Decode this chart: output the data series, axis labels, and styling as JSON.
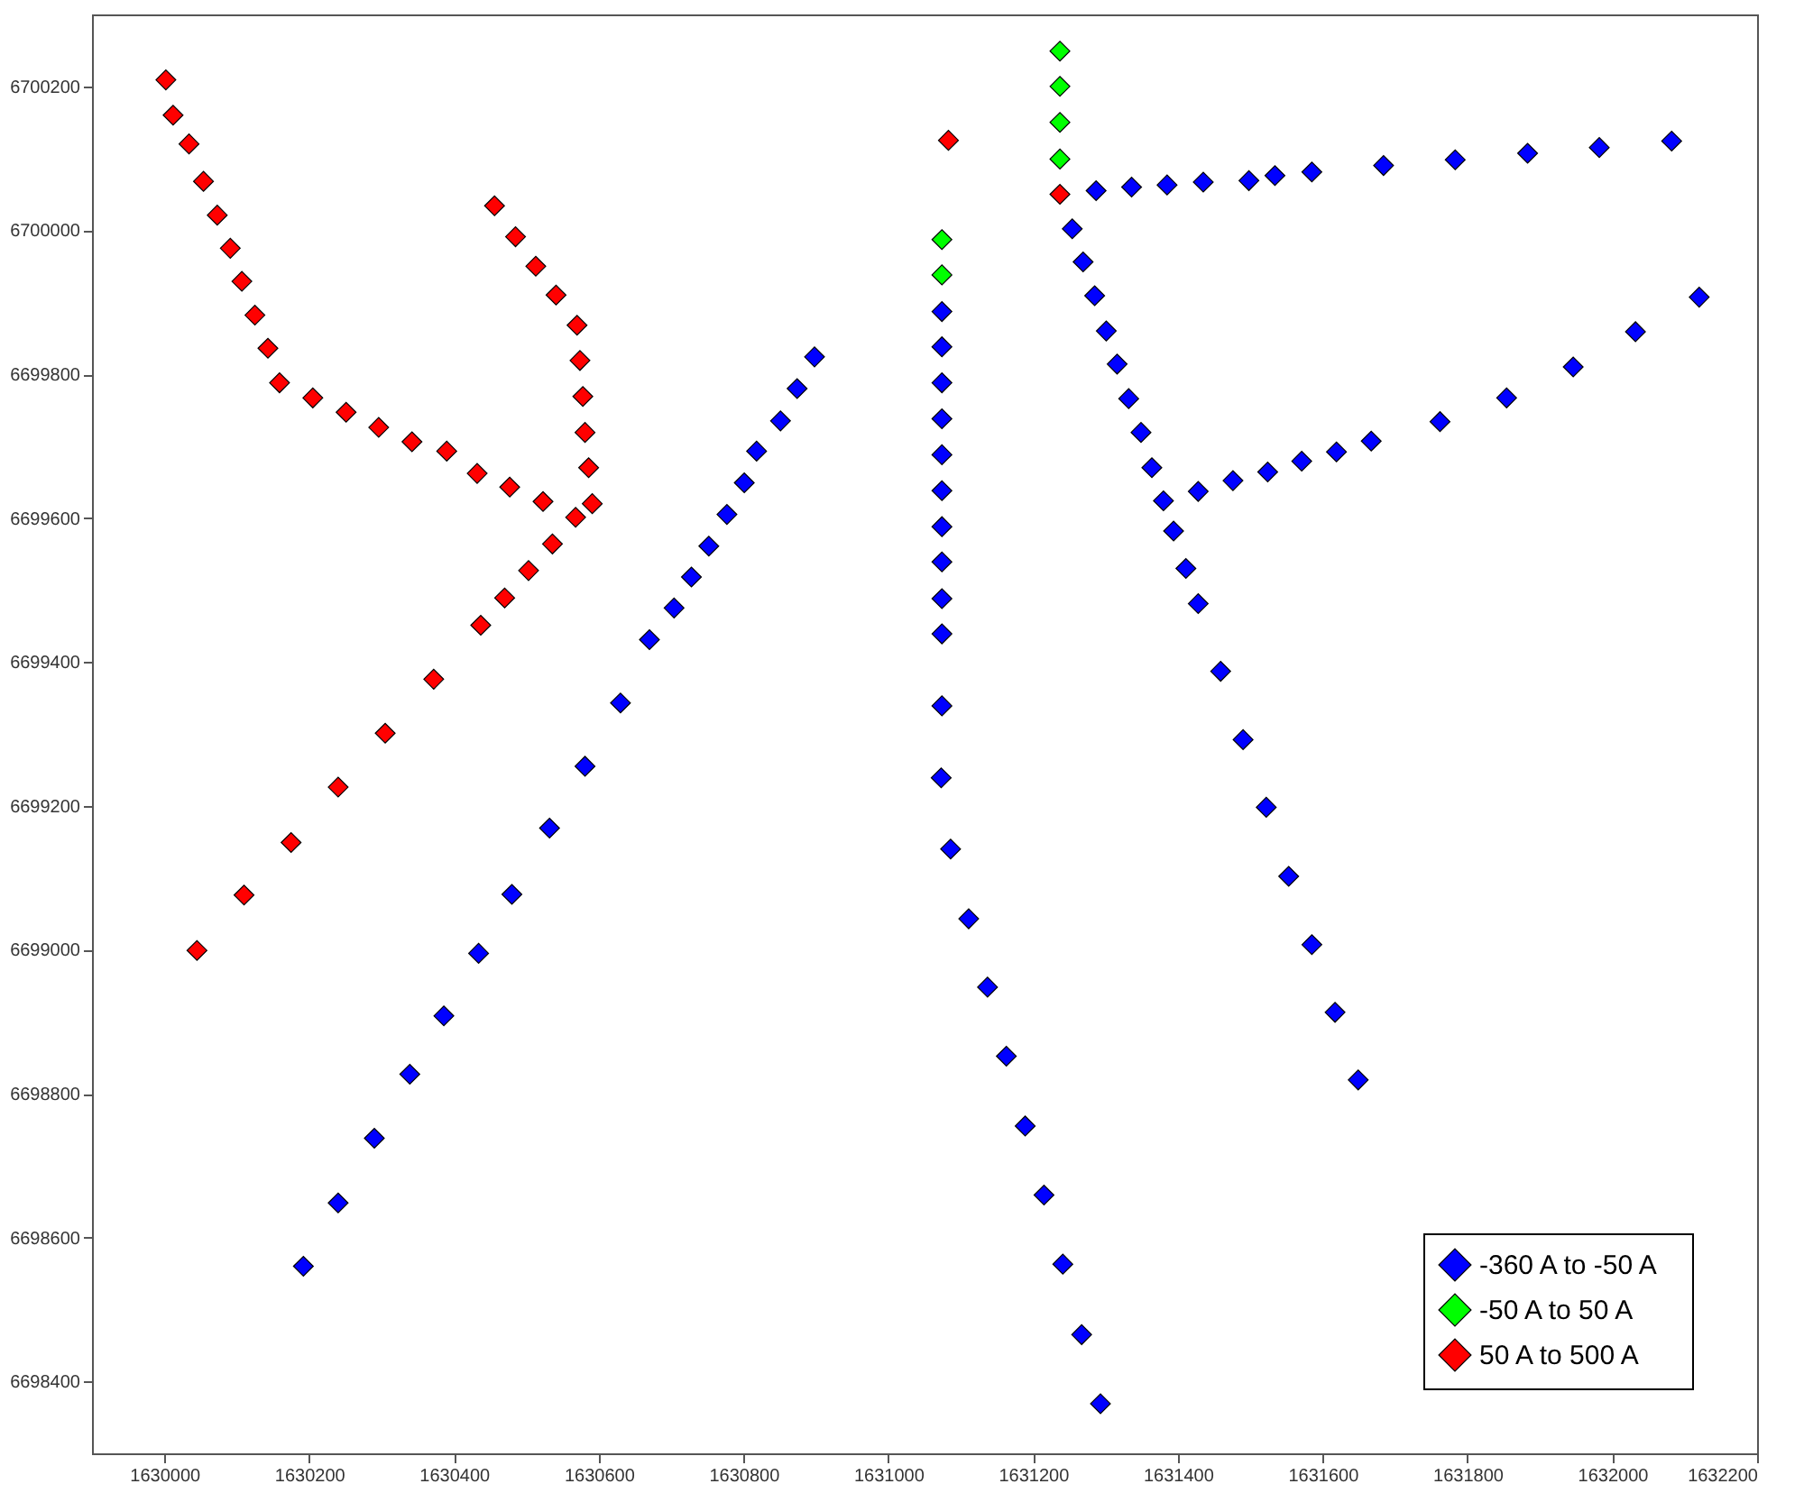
{
  "chart_data": {
    "type": "scatter",
    "marker": "diamond",
    "legend": "bottom right",
    "grid": false,
    "xlim": [
      1629900,
      1632200
    ],
    "xticks": [
      1630000,
      1630200,
      1630400,
      1630600,
      1630800,
      1631000,
      1631200,
      1631400,
      1631600,
      1631800,
      1632000,
      1632200
    ],
    "ylim": [
      6698300,
      6700300
    ],
    "yticks": [
      6698400,
      6698600,
      6698800,
      6699000,
      6699200,
      6699400,
      6699600,
      6699800,
      6700000,
      6700200
    ],
    "series": [
      {
        "name": "-360 A  to  -50 A",
        "color": "#0000ff",
        "x": [
          1631074,
          1631074,
          1631074,
          1631074,
          1631074,
          1631074,
          1631074,
          1631074,
          1631074,
          1631074,
          1631074,
          1631073,
          1631086,
          1631111,
          1631137,
          1631163,
          1631189,
          1631215,
          1631241,
          1631267,
          1631293,
          1630898,
          1630874,
          1630851,
          1630818,
          1630801,
          1630777,
          1630752,
          1630728,
          1630704,
          1630670,
          1630630,
          1630581,
          1630532,
          1630480,
          1630434,
          1630386,
          1630339,
          1630290,
          1630240,
          1630192,
          1631287,
          1631336,
          1631385,
          1631435,
          1631498,
          1631534,
          1631585,
          1631684,
          1631783,
          1631883,
          1631982,
          1632082,
          1631254,
          1631269,
          1631285,
          1631301,
          1631316,
          1631332,
          1631349,
          1631364,
          1631380,
          1631394,
          1631411,
          1631428,
          1631459,
          1631490,
          1631522,
          1631553,
          1631585,
          1631617,
          1631649,
          1631428,
          1631476,
          1631524,
          1631571,
          1631619,
          1631667,
          1631762,
          1631854,
          1631946,
          1632032,
          1632120
        ],
        "values": [
          6699887,
          6699838,
          6699788,
          6699738,
          6699688,
          6699638,
          6699588,
          6699539,
          6699488,
          6699439,
          6699339,
          6699239,
          6699140,
          6699043,
          6698948,
          6698852,
          6698755,
          6698659,
          6698563,
          6698465,
          6698369,
          6699824,
          6699780,
          6699735,
          6699693,
          6699649,
          6699605,
          6699561,
          6699518,
          6699475,
          6699431,
          6699343,
          6699255,
          6699169,
          6699077,
          6698995,
          6698908,
          6698827,
          6698738,
          6698648,
          6698560,
          6700055,
          6700060,
          6700063,
          6700067,
          6700069,
          6700076,
          6700081,
          6700090,
          6700098,
          6700107,
          6700115,
          6700124,
          6700002,
          6699956,
          6699909,
          6699860,
          6699814,
          6699766,
          6699719,
          6699670,
          6699624,
          6699582,
          6699530,
          6699481,
          6699387,
          6699292,
          6699198,
          6699102,
          6699007,
          6698913,
          6698819,
          6699637,
          6699652,
          6699664,
          6699679,
          6699692,
          6699707,
          6699734,
          6699767,
          6699810,
          6699859,
          6699907
        ]
      },
      {
        "name": "-50 A  to  50 A",
        "color": "#00ff00",
        "x": [
          1631074,
          1631074,
          1631237,
          1631237,
          1631237,
          1631237
        ],
        "values": [
          6699987,
          6699938,
          6700249,
          6700200,
          6700150,
          6700099
        ]
      },
      {
        "name": "50 A  to  500 A",
        "color": "#ff0000",
        "x": [
          1630002,
          1630012,
          1630034,
          1630054,
          1630073,
          1630091,
          1630107,
          1630125,
          1630143,
          1630159,
          1630205,
          1630251,
          1630296,
          1630342,
          1630390,
          1630432,
          1630477,
          1630523,
          1630568,
          1630456,
          1630485,
          1630513,
          1630541,
          1630570,
          1630574,
          1630578,
          1630581,
          1630586,
          1630591,
          1630536,
          1630503,
          1630470,
          1630437,
          1630372,
          1630305,
          1630240,
          1630175,
          1630110,
          1630045,
          1631083,
          1631237
        ],
        "values": [
          6700209,
          6700160,
          6700120,
          6700068,
          6700021,
          6699975,
          6699929,
          6699882,
          6699836,
          6699788,
          6699767,
          6699747,
          6699726,
          6699706,
          6699693,
          6699662,
          6699643,
          6699623,
          6699601,
          6700034,
          6699991,
          6699950,
          6699910,
          6699868,
          6699819,
          6699769,
          6699719,
          6699670,
          6699620,
          6699564,
          6699527,
          6699489,
          6699451,
          6699376,
          6699301,
          6699226,
          6699149,
          6699076,
          6698999,
          6700125,
          6700050
        ]
      }
    ]
  }
}
